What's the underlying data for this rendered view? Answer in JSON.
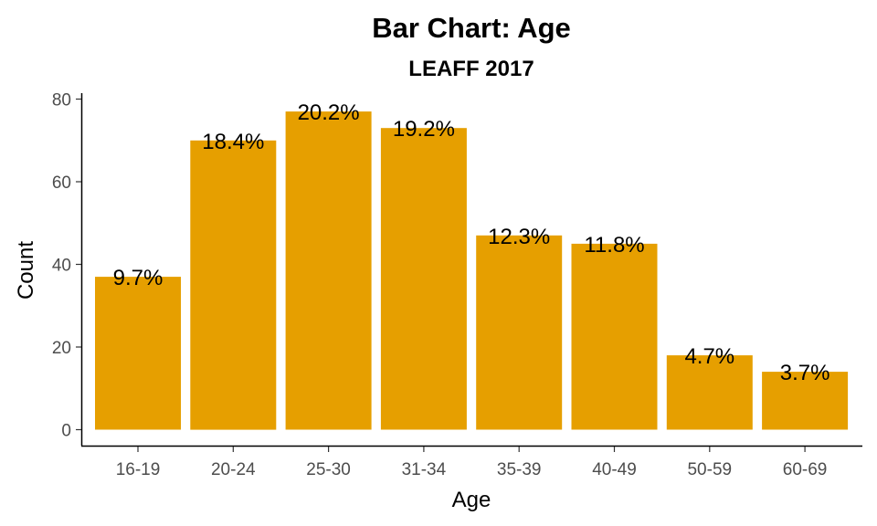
{
  "chart_data": {
    "type": "bar",
    "title": "Bar Chart: Age",
    "subtitle": "LEAFF 2017",
    "xlabel": "Age",
    "ylabel": "Count",
    "categories": [
      "16-19",
      "20-24",
      "25-30",
      "31-34",
      "35-39",
      "40-49",
      "50-59",
      "60-69"
    ],
    "values": [
      37,
      70,
      77,
      73,
      47,
      45,
      18,
      14
    ],
    "data_labels": [
      "9.7%",
      "18.4%",
      "20.2%",
      "19.2%",
      "12.3%",
      "11.8%",
      "4.7%",
      "3.7%"
    ],
    "ylim": [
      0,
      80
    ],
    "yticks": [
      "0",
      "20",
      "40",
      "60",
      "80"
    ],
    "grid": false,
    "legend": "none",
    "colors": {
      "bar": "#E69F00",
      "axis": "#000000",
      "tick_text": "#4d4d4d"
    }
  }
}
